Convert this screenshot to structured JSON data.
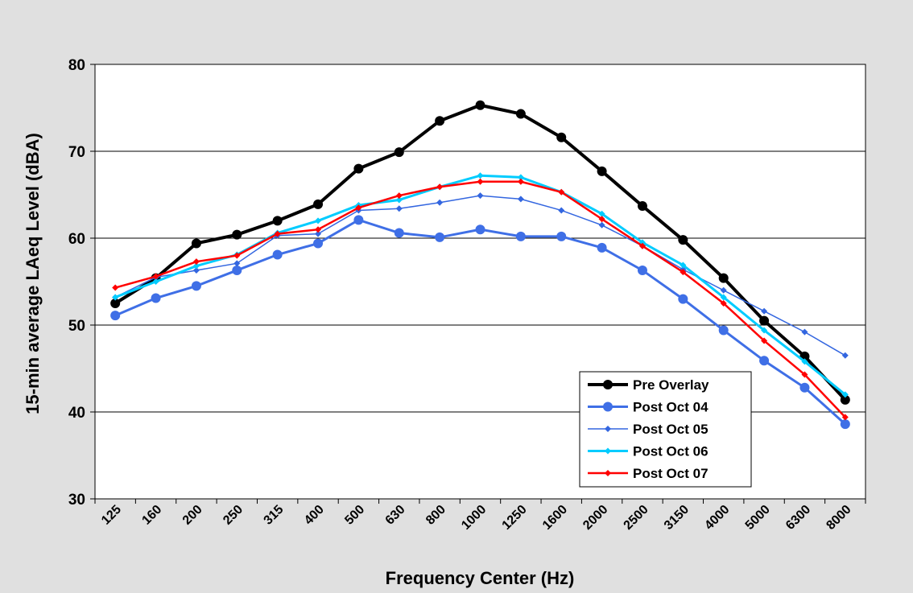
{
  "chart_data": {
    "type": "line",
    "x_label": "Frequency Center (Hz)",
    "y_label": "15-min average LAeq Level (dBA)",
    "categories": [
      "125",
      "160",
      "200",
      "250",
      "315",
      "400",
      "500",
      "630",
      "800",
      "1000",
      "1250",
      "1600",
      "2000",
      "2500",
      "3150",
      "4000",
      "5000",
      "6300",
      "8000"
    ],
    "ylim": [
      30,
      80
    ],
    "yticks": [
      30,
      40,
      50,
      60,
      70,
      80
    ],
    "grid": true,
    "legend": "lower right",
    "series": [
      {
        "name": "Pre Overlay",
        "color": "#000000",
        "marker": "circle",
        "values": [
          52.5,
          55.4,
          59.4,
          60.4,
          62.0,
          63.9,
          68.0,
          69.9,
          73.5,
          75.3,
          74.3,
          71.6,
          67.7,
          63.7,
          59.8,
          55.4,
          50.5,
          46.4,
          41.4
        ]
      },
      {
        "name": "Post Oct 04",
        "color": "#3f6fe6",
        "marker": "circle",
        "values": [
          51.1,
          53.1,
          54.5,
          56.3,
          58.1,
          59.4,
          62.1,
          60.6,
          60.1,
          61.0,
          60.2,
          60.2,
          58.9,
          56.3,
          53.0,
          49.4,
          45.9,
          42.8,
          38.6
        ]
      },
      {
        "name": "Post Oct 05",
        "color": "#3366e0",
        "marker": "diamond",
        "values": [
          53.2,
          55.5,
          56.3,
          57.1,
          60.3,
          60.5,
          63.2,
          63.4,
          64.1,
          64.9,
          64.5,
          63.2,
          61.5,
          59.1,
          56.4,
          54.0,
          51.6,
          49.2,
          46.5
        ]
      },
      {
        "name": "Post Oct 06",
        "color": "#00ccff",
        "marker": "diamond",
        "values": [
          53.2,
          55.0,
          56.8,
          58.1,
          60.6,
          62.0,
          63.8,
          64.4,
          65.9,
          67.2,
          67.0,
          65.3,
          62.8,
          59.5,
          56.9,
          53.2,
          49.4,
          45.8,
          42.0
        ]
      },
      {
        "name": "Post Oct 07",
        "color": "#ff0000",
        "marker": "diamond",
        "values": [
          54.3,
          55.6,
          57.3,
          58.0,
          60.5,
          61.0,
          63.5,
          64.9,
          65.9,
          66.5,
          66.5,
          65.3,
          62.2,
          59.1,
          56.1,
          52.5,
          48.2,
          44.3,
          39.4
        ]
      }
    ]
  }
}
